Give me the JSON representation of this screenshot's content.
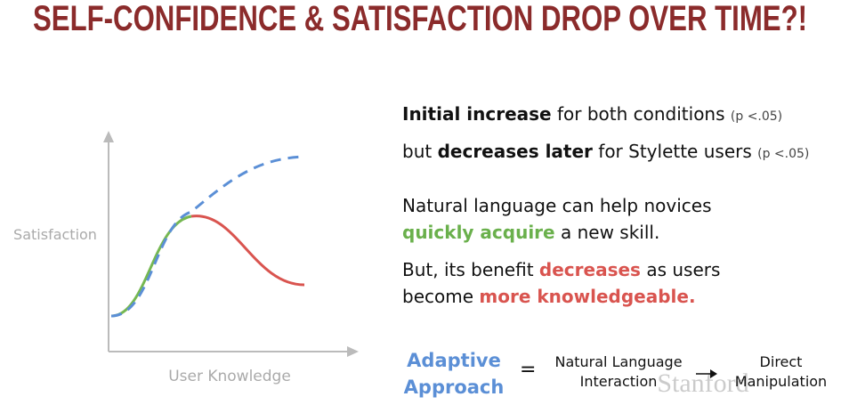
{
  "title": "SELF-CONFIDENCE & SATISFACTION DROP OVER TIME?!",
  "diagram": {
    "y_label": "Satisfaction",
    "x_label": "User Knowledge"
  },
  "findings": [
    [
      "Initial increase",
      "for both conditions",
      "(p <.05)"
    ],
    [
      "but",
      "decreases later",
      "for Stylette users",
      "(p <.05)"
    ]
  ],
  "claims": [
    [
      "Natural language can help novices",
      "quickly acquire",
      "a new skill."
    ],
    [
      "But, its benefit",
      "decreases",
      "as users",
      "become",
      "more knowledgeable."
    ]
  ],
  "equation": {
    "left": [
      "Adaptive",
      "Approach"
    ],
    "equals": "=",
    "middle": [
      "Natural Language",
      "Interaction"
    ],
    "right": [
      "Direct",
      "Manipulation"
    ]
  },
  "watermark": "Stanford"
}
